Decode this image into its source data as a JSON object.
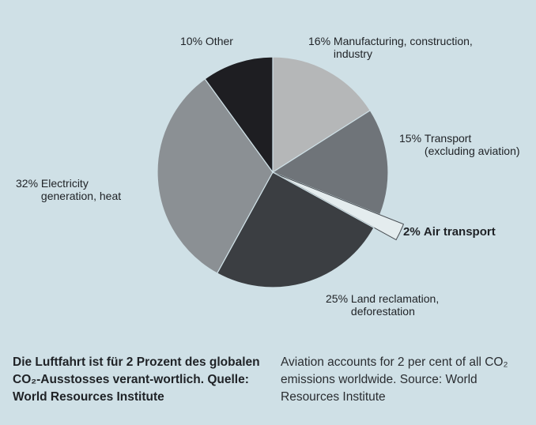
{
  "chart_data": {
    "type": "pie",
    "title": "",
    "slices": [
      {
        "label": "Manufacturing, construction,\nindustry",
        "percent_label": "16%",
        "value": 16,
        "color": "#b5b7b8"
      },
      {
        "label": "Transport\n(excluding aviation)",
        "percent_label": "15%",
        "value": 15,
        "color": "#6f7479"
      },
      {
        "label": "Air transport",
        "percent_label": "2%",
        "value": 2,
        "color": "#e4ecee",
        "exploded": true,
        "emphasis": "bold"
      },
      {
        "label": "Land reclamation,\ndeforestation",
        "percent_label": "25%",
        "value": 25,
        "color": "#3b3e42"
      },
      {
        "label": "Electricity\ngeneration, heat",
        "percent_label": "32%",
        "value": 32,
        "color": "#8b9094"
      },
      {
        "label": "Other",
        "percent_label": "10%",
        "value": 10,
        "color": "#1e1e22"
      }
    ]
  },
  "caption": {
    "german": "Die Luftfahrt ist für 2 Prozent des globalen CO₂-Ausstosses verant-wortlich. Quelle: World Resources Institute",
    "english": "Aviation accounts for 2 per cent of all CO₂ emissions worldwide. Source: World Resources Institute"
  }
}
